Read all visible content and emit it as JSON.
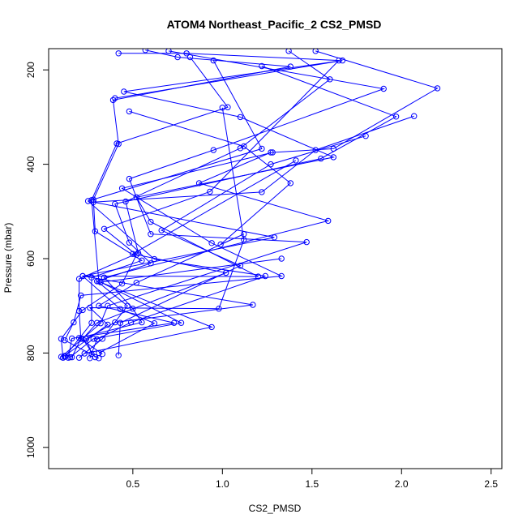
{
  "chart_data": {
    "type": "line",
    "title": "ATOM4 Northeast_Pacific_2 CS2_PMSD",
    "xlabel": "CS2_PMSD",
    "ylabel": "Pressure (mbar)",
    "xlim": [
      0.03,
      2.56
    ],
    "ylim": [
      1045,
      155
    ],
    "y_inverted": true,
    "x_ticks": [
      0.5,
      1.0,
      1.5,
      2.0,
      2.5
    ],
    "x_tick_labels": [
      "0.5",
      "1.0",
      "1.5",
      "2.0",
      "2.5"
    ],
    "y_ticks": [
      200,
      400,
      600,
      800,
      1000
    ],
    "y_tick_labels": [
      "200",
      "400",
      "600",
      "800",
      "1000"
    ],
    "grid": false,
    "marker": "open-circle",
    "colors": {
      "series": "#0000ff",
      "axis": "#000000",
      "background": "#ffffff"
    },
    "series": [
      {
        "values": [
          [
            0.42,
            165
          ],
          [
            0.8,
            165
          ],
          [
            1.65,
            180
          ],
          [
            0.93,
            458
          ],
          [
            0.34,
            537
          ],
          [
            0.52,
            592
          ],
          [
            0.44,
            653
          ],
          [
            0.22,
            709
          ],
          [
            0.1,
            770
          ],
          [
            0.11,
            810
          ]
        ]
      },
      {
        "values": [
          [
            0.57,
            158
          ],
          [
            0.75,
            173
          ],
          [
            1.38,
            193
          ],
          [
            0.39,
            264
          ],
          [
            0.42,
            357
          ],
          [
            0.28,
            475
          ],
          [
            0.29,
            542
          ],
          [
            0.55,
            604
          ],
          [
            0.27,
            640
          ],
          [
            0.27,
            736
          ],
          [
            0.12,
            808
          ]
        ]
      },
      {
        "values": [
          [
            1.37,
            160
          ],
          [
            1.6,
            220
          ],
          [
            1.1,
            366
          ],
          [
            0.46,
            479
          ],
          [
            0.53,
            588
          ],
          [
            0.2,
            643
          ],
          [
            0.2,
            711
          ],
          [
            0.21,
            770
          ],
          [
            0.16,
            809
          ]
        ]
      },
      {
        "values": [
          [
            0.7,
            160
          ],
          [
            1.9,
            240
          ],
          [
            0.95,
            370
          ],
          [
            0.48,
            431
          ],
          [
            0.6,
            548
          ],
          [
            1.47,
            565
          ],
          [
            0.36,
            700
          ],
          [
            0.32,
            737
          ],
          [
            0.1,
            808
          ]
        ]
      },
      {
        "values": [
          [
            0.82,
            173
          ],
          [
            1.03,
            279
          ],
          [
            0.41,
            356
          ],
          [
            0.27,
            476
          ],
          [
            0.31,
            648
          ],
          [
            0.77,
            736
          ],
          [
            0.28,
            770
          ],
          [
            0.15,
            809
          ]
        ]
      },
      {
        "values": [
          [
            0.95,
            180
          ],
          [
            1.22,
            367
          ],
          [
            0.25,
            478
          ],
          [
            0.62,
            601
          ],
          [
            1.24,
            637
          ],
          [
            0.49,
            735
          ],
          [
            0.3,
            771
          ],
          [
            0.26,
            811
          ]
        ]
      },
      {
        "values": [
          [
            1.22,
            192
          ],
          [
            1.97,
            299
          ],
          [
            1.55,
            388
          ],
          [
            0.4,
            484
          ],
          [
            0.48,
            566
          ],
          [
            0.6,
            610
          ],
          [
            0.3,
            648
          ],
          [
            0.47,
            700
          ],
          [
            0.33,
            770
          ],
          [
            0.2,
            810
          ]
        ]
      },
      {
        "values": [
          [
            1.52,
            160
          ],
          [
            2.2,
            239
          ],
          [
            1.62,
            367
          ],
          [
            1.28,
            375
          ],
          [
            0.44,
            451
          ],
          [
            0.94,
            567
          ],
          [
            1.33,
            637
          ],
          [
            0.21,
            678
          ],
          [
            0.17,
            735
          ],
          [
            0.12,
            773
          ],
          [
            0.31,
            811
          ]
        ]
      },
      {
        "values": [
          [
            0.4,
            260
          ],
          [
            1.67,
            180
          ],
          [
            0.45,
            246
          ],
          [
            1.1,
            300
          ],
          [
            1.62,
            385
          ],
          [
            0.52,
            470
          ],
          [
            0.6,
            522
          ],
          [
            1.2,
            638
          ],
          [
            0.22,
            637
          ],
          [
            0.43,
            707
          ],
          [
            0.62,
            737
          ],
          [
            0.31,
            800
          ]
        ]
      },
      {
        "values": [
          [
            0.48,
            288
          ],
          [
            1.12,
            362
          ],
          [
            1.38,
            440
          ],
          [
            0.99,
            570
          ],
          [
            1.12,
            548
          ],
          [
            0.52,
            651
          ],
          [
            0.31,
            700
          ],
          [
            0.73,
            736
          ],
          [
            0.16,
            769
          ],
          [
            0.14,
            810
          ]
        ]
      },
      {
        "values": [
          [
            2.07,
            298
          ],
          [
            1.52,
            370
          ],
          [
            1.22,
            459
          ],
          [
            0.28,
            480
          ],
          [
            1.29,
            555
          ],
          [
            0.22,
            637
          ],
          [
            1.17,
            698
          ],
          [
            0.4,
            735
          ],
          [
            0.24,
            770
          ],
          [
            0.27,
            802
          ]
        ]
      },
      {
        "values": [
          [
            1.8,
            340
          ],
          [
            1.27,
            400
          ],
          [
            0.66,
            540
          ],
          [
            1.1,
            615
          ],
          [
            0.43,
            736
          ],
          [
            0.42,
            805
          ]
        ]
      },
      {
        "values": [
          [
            1.27,
            375
          ],
          [
            0.87,
            440
          ],
          [
            1.59,
            520
          ],
          [
            0.34,
            640
          ],
          [
            0.5,
            706
          ],
          [
            0.55,
            735
          ],
          [
            0.2,
            768
          ],
          [
            0.33,
            802
          ]
        ]
      },
      {
        "values": [
          [
            1.0,
            280
          ],
          [
            1.12,
            560
          ],
          [
            0.98,
            706
          ],
          [
            0.26,
            704
          ],
          [
            0.36,
            740
          ],
          [
            0.12,
            806
          ]
        ]
      },
      {
        "values": [
          [
            1.41,
            392
          ],
          [
            0.5,
            590
          ],
          [
            1.02,
            630
          ],
          [
            0.3,
            736
          ],
          [
            0.22,
            770
          ],
          [
            0.29,
            809
          ]
        ]
      },
      {
        "values": [
          [
            1.33,
            600
          ],
          [
            0.32,
            650
          ],
          [
            0.94,
            745
          ],
          [
            0.23,
            801
          ]
        ]
      }
    ]
  }
}
